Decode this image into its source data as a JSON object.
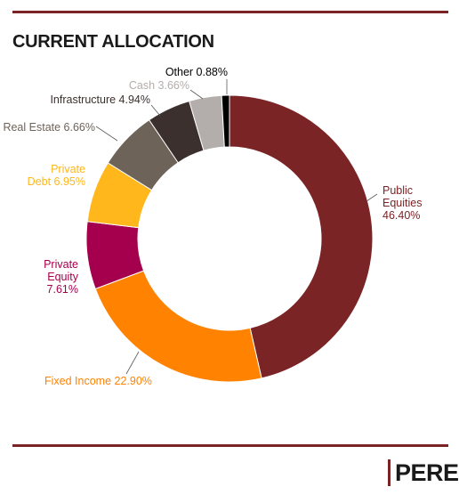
{
  "title": "CURRENT ALLOCATION",
  "brand": {
    "logo_text": "PERE",
    "accent_color": "#7a2426"
  },
  "chart_data": {
    "type": "pie",
    "donut": true,
    "title": "CURRENT ALLOCATION",
    "categories": [
      "Public Equities",
      "Fixed Income",
      "Private Equity",
      "Private Debt",
      "Real Estate",
      "Infrastructure",
      "Cash",
      "Other"
    ],
    "values": [
      46.4,
      22.9,
      7.61,
      6.95,
      6.66,
      4.94,
      3.66,
      0.88
    ],
    "colors": [
      "#7a2426",
      "#ff8200",
      "#a5004e",
      "#ffb71b",
      "#6e6359",
      "#3b302e",
      "#b3aeab",
      "#000000"
    ],
    "labels": [
      [
        "Public",
        "Equities",
        "46.40%"
      ],
      [
        "Fixed Income 22.90%"
      ],
      [
        "Private",
        "Equity",
        "7.61%"
      ],
      [
        "Private",
        "Debt 6.95%"
      ],
      [
        "Real Estate 6.66%"
      ],
      [
        "Infrastructure 4.94%"
      ],
      [
        "Cash 3.66%"
      ],
      [
        "Other 0.88%"
      ]
    ],
    "label_colors": [
      "#7a2426",
      "#ff8200",
      "#a5004e",
      "#ffb71b",
      "#6e6359",
      "#3b302e",
      "#b3aeab",
      "#000000"
    ],
    "start": "12 o'clock",
    "direction": "clockwise"
  }
}
